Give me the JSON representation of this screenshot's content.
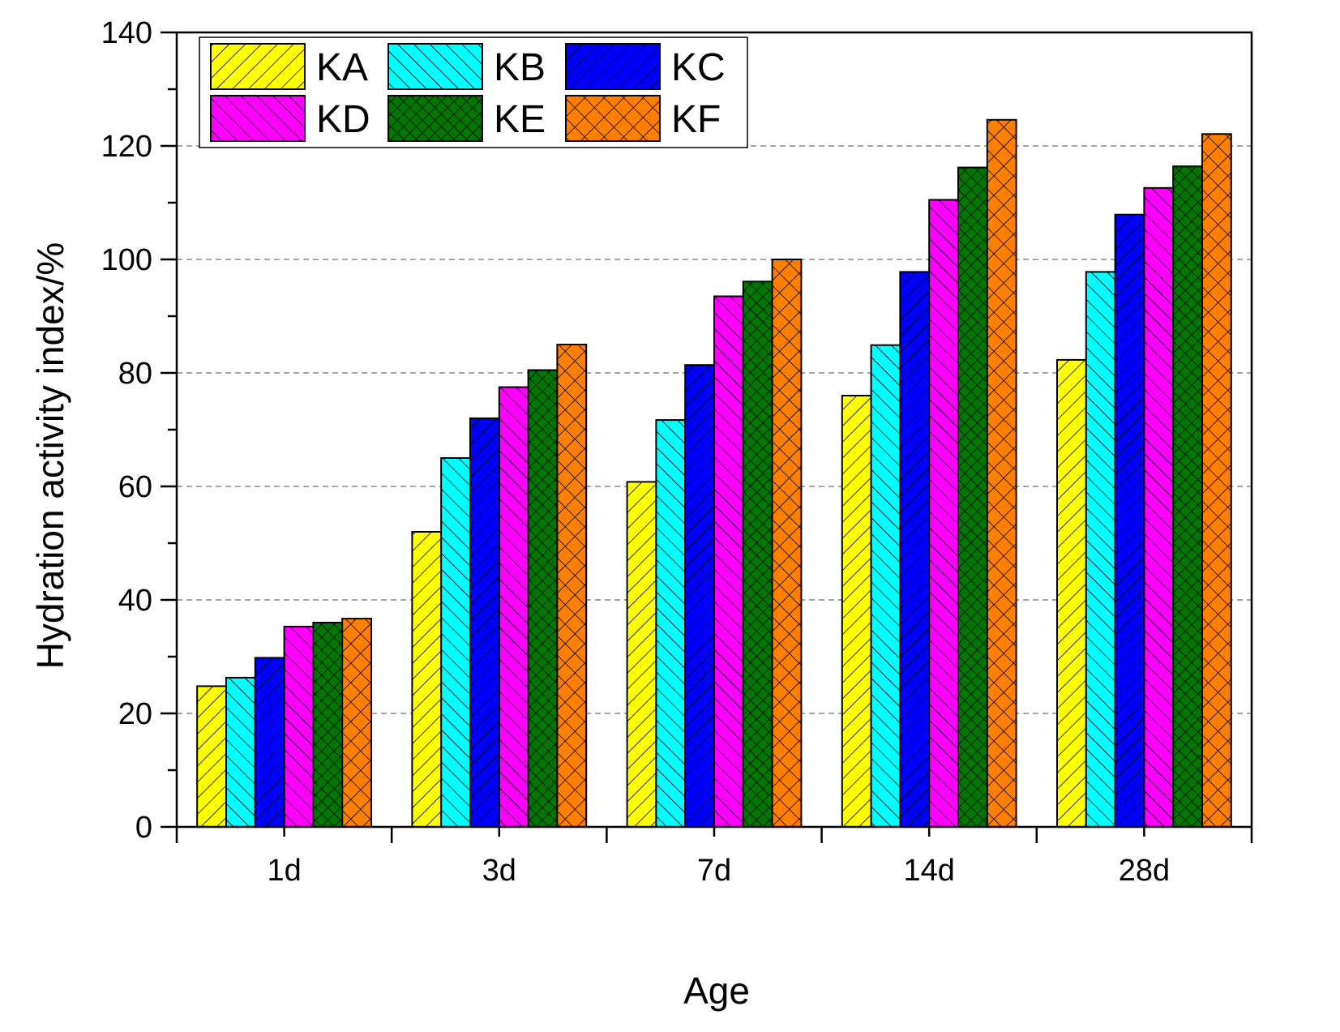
{
  "chart_data": {
    "type": "bar",
    "title": "",
    "xlabel": "Age",
    "ylabel": "Hydration activity index/%",
    "ylim": [
      0,
      140
    ],
    "yticks": [
      "0",
      "20",
      "40",
      "60",
      "80",
      "100",
      "120",
      "140"
    ],
    "grid": "horizontal-dashed",
    "legend_position": "top-left",
    "categories": [
      "1d",
      "3d",
      "7d",
      "14d",
      "28d"
    ],
    "series": [
      {
        "name": "KA",
        "color": "#ffff00",
        "pattern": "forward-diagonal",
        "values": [
          24.8,
          52.0,
          60.8,
          76.0,
          82.3
        ]
      },
      {
        "name": "KB",
        "color": "#00ffff",
        "pattern": "back-diagonal",
        "values": [
          26.3,
          65.0,
          71.7,
          84.9,
          97.8
        ]
      },
      {
        "name": "KC",
        "color": "#0000ff",
        "pattern": "forward-diagonal",
        "values": [
          29.8,
          72.0,
          81.4,
          97.8,
          107.9
        ]
      },
      {
        "name": "KD",
        "color": "#ff00ff",
        "pattern": "back-diagonal",
        "values": [
          35.3,
          77.5,
          93.5,
          110.5,
          112.6
        ]
      },
      {
        "name": "KE",
        "color": "#007700",
        "pattern": "crosshatch-fine",
        "values": [
          36.0,
          80.5,
          96.1,
          116.2,
          116.4
        ]
      },
      {
        "name": "KF",
        "color": "#ff7f00",
        "pattern": "crosshatch-coarse",
        "values": [
          36.7,
          85.0,
          100.0,
          124.6,
          122.1
        ]
      }
    ]
  }
}
